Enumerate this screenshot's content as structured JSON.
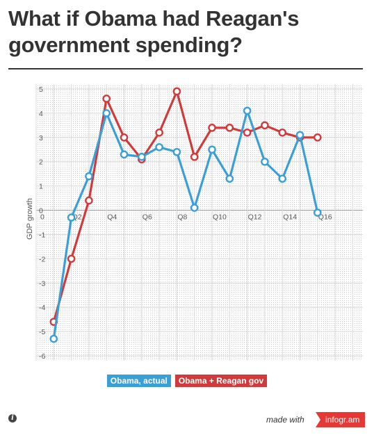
{
  "title": "What if Obama had Reagan's government spending?",
  "footer": {
    "made_with": "made with",
    "brand": "infogr.am"
  },
  "colors": {
    "actual": "#3a9fd6",
    "reagan": "#d03a3a",
    "text": "#333333"
  },
  "icons": {
    "info": "info-icon"
  },
  "chart_data": {
    "type": "line",
    "title": "What if Obama had Reagan's government spending?",
    "xlabel": "",
    "ylabel": "GDP growth",
    "ylim": [
      -6.2,
      5.2
    ],
    "yticks": [
      5,
      4,
      3,
      2,
      1,
      0,
      -1,
      -2,
      -3,
      -4,
      -5,
      -6
    ],
    "x": [
      1,
      2,
      3,
      4,
      5,
      6,
      7,
      8,
      9,
      10,
      11,
      12,
      13,
      14,
      15,
      16
    ],
    "xtick_labels": [
      {
        "x": 0,
        "label": "0"
      },
      {
        "x": 2,
        "label": "Q2"
      },
      {
        "x": 4,
        "label": "Q4"
      },
      {
        "x": 6,
        "label": "Q6"
      },
      {
        "x": 8,
        "label": "Q8"
      },
      {
        "x": 10,
        "label": "Q10"
      },
      {
        "x": 12,
        "label": "Q12"
      },
      {
        "x": 14,
        "label": "Q14"
      },
      {
        "x": 16,
        "label": "Q16"
      }
    ],
    "grid": true,
    "legend_position": "bottom",
    "series": [
      {
        "name": "Obama, actual",
        "color": "#3a9fd6",
        "values": [
          -5.3,
          -0.3,
          1.4,
          4.0,
          2.3,
          2.2,
          2.6,
          2.4,
          0.1,
          2.5,
          1.3,
          4.1,
          2.0,
          1.3,
          3.1,
          -0.1
        ]
      },
      {
        "name": "Obama + Reagan gov",
        "color": "#d03a3a",
        "values": [
          -4.6,
          -2.0,
          0.4,
          4.6,
          3.0,
          2.1,
          3.2,
          4.9,
          2.2,
          3.4,
          3.4,
          3.2,
          3.5,
          3.2,
          3.0,
          3.0
        ]
      }
    ]
  }
}
